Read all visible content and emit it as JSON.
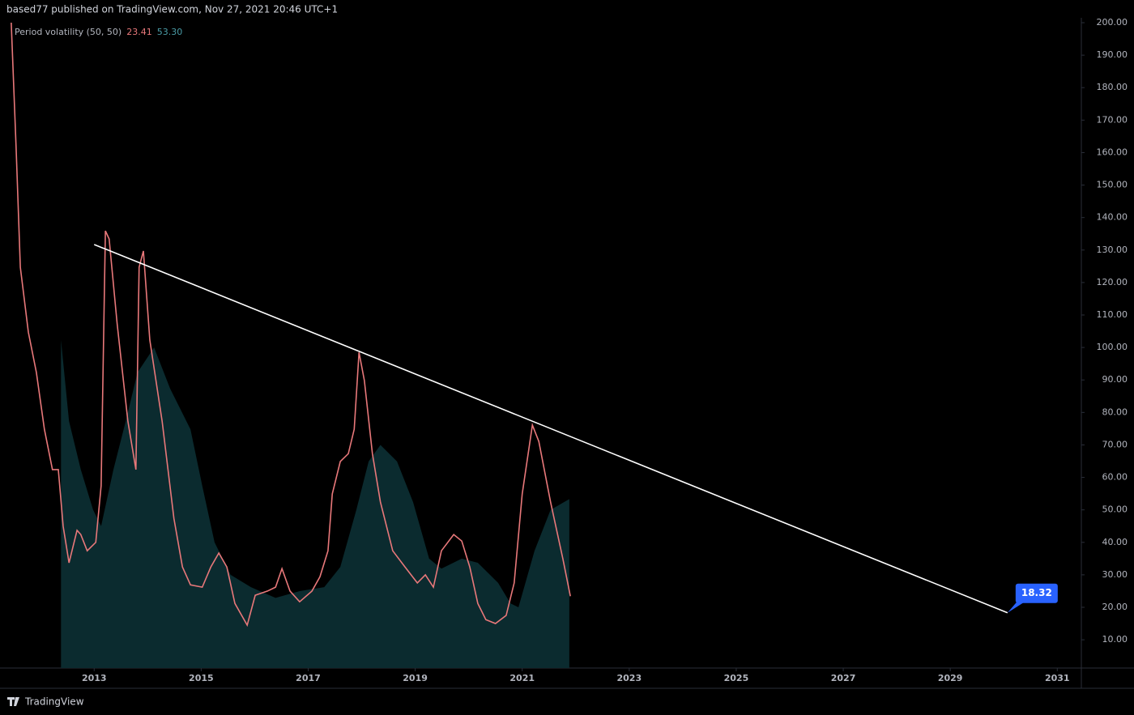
{
  "header": "based77 published on TradingView.com, Nov 27, 2021 20:46 UTC+1",
  "footer": "TradingView",
  "chart_data": {
    "type": "line",
    "legend_label": "Period volatility (50, 50)",
    "series": [
      {
        "name": "Period volatility",
        "kind": "line",
        "color": "#e8787a",
        "last_label": "23.41",
        "x": [
          2011.45,
          2011.54,
          2011.62,
          2011.77,
          2011.92,
          2012.07,
          2012.22,
          2012.33,
          2012.42,
          2012.53,
          2012.68,
          2012.75,
          2012.87,
          2013.03,
          2013.13,
          2013.21,
          2013.28,
          2013.43,
          2013.63,
          2013.78,
          2013.84,
          2013.92,
          2014.04,
          2014.27,
          2014.49,
          2014.65,
          2014.8,
          2015.02,
          2015.18,
          2015.33,
          2015.48,
          2015.63,
          2015.86,
          2016.01,
          2016.24,
          2016.39,
          2016.51,
          2016.66,
          2016.84,
          2017.07,
          2017.22,
          2017.37,
          2017.45,
          2017.6,
          2017.75,
          2017.86,
          2017.95,
          2018.05,
          2018.2,
          2018.35,
          2018.58,
          2018.81,
          2019.04,
          2019.19,
          2019.34,
          2019.49,
          2019.72,
          2019.87,
          2020.02,
          2020.17,
          2020.32,
          2020.5,
          2020.7,
          2020.85,
          2021.0,
          2021.19,
          2021.31,
          2021.53,
          2021.76,
          2021.9
        ],
        "values": [
          200,
          162,
          124.7,
          104.7,
          92.3,
          74.8,
          62.4,
          62.4,
          45,
          33.7,
          43.7,
          42.4,
          37.4,
          40,
          57.4,
          135.9,
          133.4,
          107.2,
          77.3,
          62.4,
          124.7,
          129.7,
          102.3,
          77.3,
          47.4,
          32.4,
          26.9,
          26.2,
          32.4,
          36.7,
          32.4,
          21.2,
          14.5,
          23.7,
          25,
          26.2,
          31.9,
          25,
          21.7,
          25,
          29.4,
          37.4,
          54.9,
          64.9,
          67.3,
          74.8,
          98.5,
          89.8,
          67.3,
          52.4,
          37.4,
          32.4,
          27.5,
          30,
          26.2,
          37.4,
          42.4,
          40.4,
          32.4,
          21.2,
          16.2,
          15,
          17.5,
          27.5,
          54.9,
          76.1,
          71.1,
          52.4,
          34.9,
          23.41
        ]
      },
      {
        "name": "Period volatility average",
        "kind": "area",
        "color": "#0b2b2f",
        "last_label": "53.30",
        "x": [
          2012.38,
          2012.53,
          2012.75,
          2012.98,
          2013.13,
          2013.36,
          2013.59,
          2013.81,
          2014.12,
          2014.42,
          2014.8,
          2015.02,
          2015.25,
          2015.55,
          2015.93,
          2016.39,
          2016.84,
          2017.3,
          2017.6,
          2017.9,
          2018.13,
          2018.35,
          2018.66,
          2018.96,
          2019.26,
          2019.49,
          2019.87,
          2020.17,
          2020.55,
          2020.78,
          2020.93,
          2021.23,
          2021.53,
          2021.88
        ],
        "values": [
          102.3,
          77.3,
          62.4,
          50,
          45,
          62.4,
          77.3,
          92.3,
          100,
          87.3,
          74.8,
          57.4,
          40,
          30,
          26.2,
          22.9,
          25,
          26.2,
          32.4,
          50,
          64.9,
          70,
          64.9,
          52.4,
          35,
          31.9,
          35,
          33.7,
          27.5,
          21.2,
          20,
          37.4,
          50,
          53.3
        ]
      }
    ],
    "trendline": {
      "color": "#ffffff",
      "x": [
        2013.0,
        2030.07
      ],
      "values": [
        131.7,
        18.32
      ]
    },
    "xlim": [
      2011.24,
      2031.45
    ],
    "ylim": [
      1.3,
      201.5
    ],
    "xticks": [
      2013,
      2015,
      2017,
      2019,
      2021,
      2023,
      2025,
      2027,
      2029,
      2031
    ],
    "yticks": [
      {
        "value": 10,
        "label": "10.00"
      },
      {
        "value": 20,
        "label": "20.00"
      },
      {
        "value": 30,
        "label": "30.00"
      },
      {
        "value": 40,
        "label": "40.00"
      },
      {
        "value": 50,
        "label": "50.00"
      },
      {
        "value": 60,
        "label": "60.00"
      },
      {
        "value": 70,
        "label": "70.00"
      },
      {
        "value": 80,
        "label": "80.00"
      },
      {
        "value": 90,
        "label": "90.00"
      },
      {
        "value": 100,
        "label": "100.00"
      },
      {
        "value": 110,
        "label": "110.00"
      },
      {
        "value": 120,
        "label": "120.00"
      },
      {
        "value": 130,
        "label": "130.00"
      },
      {
        "value": 140,
        "label": "140.00"
      },
      {
        "value": 150,
        "label": "150.00"
      },
      {
        "value": 160,
        "label": "160.00"
      },
      {
        "value": 170,
        "label": "170.00"
      },
      {
        "value": 180,
        "label": "180.00"
      },
      {
        "value": 190,
        "label": "190.00"
      },
      {
        "value": 200,
        "label": "200.00"
      }
    ],
    "grid": false
  }
}
